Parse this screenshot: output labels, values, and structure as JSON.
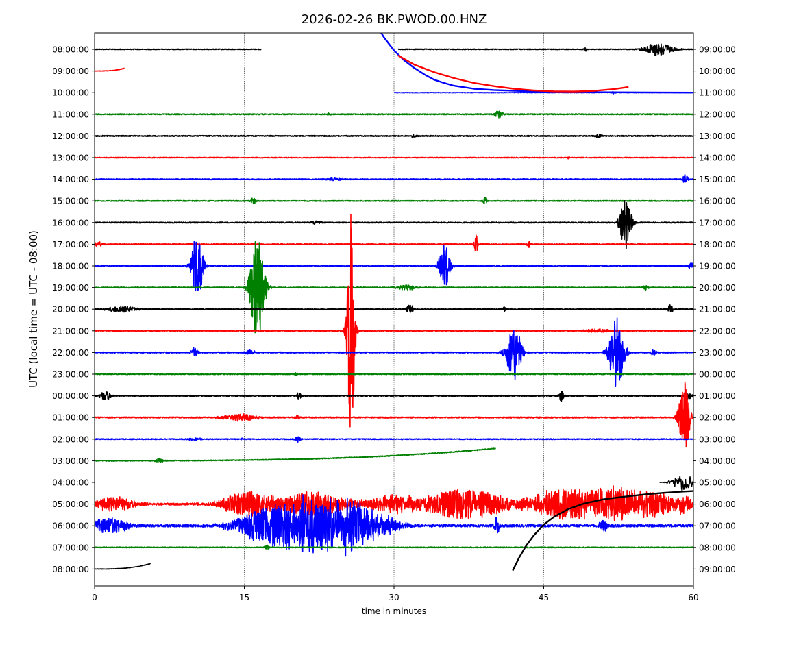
{
  "chart_data": {
    "type": "line",
    "title": "2026-02-26 BK.PWOD.00.HNZ",
    "xlabel": "time in minutes",
    "ylabel": "UTC (local time = UTC - 08:00)",
    "xlim": [
      0,
      60
    ],
    "xticks": [
      0,
      15,
      30,
      45,
      60
    ],
    "x_grid_lines": [
      15,
      30,
      45
    ],
    "trace_colors": [
      "#000000",
      "#ff0000",
      "#0000ff",
      "#008000"
    ],
    "left_labels": [
      "08:00:00",
      "09:00:00",
      "10:00:00",
      "11:00:00",
      "12:00:00",
      "13:00:00",
      "14:00:00",
      "15:00:00",
      "16:00:00",
      "17:00:00",
      "18:00:00",
      "19:00:00",
      "20:00:00",
      "21:00:00",
      "22:00:00",
      "23:00:00",
      "00:00:00",
      "01:00:00",
      "02:00:00",
      "03:00:00",
      "04:00:00",
      "05:00:00",
      "06:00:00",
      "07:00:00",
      "08:00:00"
    ],
    "right_labels": [
      "09:00:00",
      "10:00:00",
      "11:00:00",
      "12:00:00",
      "13:00:00",
      "14:00:00",
      "15:00:00",
      "16:00:00",
      "17:00:00",
      "18:00:00",
      "19:00:00",
      "20:00:00",
      "21:00:00",
      "22:00:00",
      "23:00:00",
      "00:00:00",
      "01:00:00",
      "02:00:00",
      "03:00:00",
      "04:00:00",
      "05:00:00",
      "06:00:00",
      "07:00:00",
      "08:00:00",
      "09:00:00"
    ],
    "rows": [
      {
        "label": "08:00:00",
        "color": "black",
        "segments": [
          [
            0,
            16.7
          ],
          [
            30.4,
            60
          ]
        ],
        "noise": 0.6,
        "events": [
          {
            "t": 56.5,
            "amp": 10,
            "dur": 1.5
          },
          {
            "t": 49.2,
            "amp": 3,
            "dur": 0.2
          }
        ]
      },
      {
        "label": "09:00:00",
        "color": "red",
        "segments": [
          [
            0,
            3
          ]
        ],
        "noise": 0.3,
        "drift": {
          "type": "rise",
          "amp": 4
        }
      },
      {
        "label": "10:00:00",
        "color": "blue",
        "segments": [
          [
            30,
            60
          ]
        ],
        "noise": 0.4,
        "events": [
          {
            "t": 52,
            "amp": 2,
            "dur": 0.2
          }
        ]
      },
      {
        "label": "11:00:00",
        "color": "green",
        "segments": [
          [
            0,
            60
          ]
        ],
        "noise": 0.8,
        "events": [
          {
            "t": 40.5,
            "amp": 6,
            "dur": 0.4
          },
          {
            "t": 23.5,
            "amp": 2,
            "dur": 0.2
          }
        ]
      },
      {
        "label": "12:00:00",
        "color": "black",
        "segments": [
          [
            0,
            60
          ]
        ],
        "noise": 0.8,
        "events": [
          {
            "t": 32,
            "amp": 3,
            "dur": 0.3
          },
          {
            "t": 50.5,
            "amp": 3,
            "dur": 0.3
          }
        ]
      },
      {
        "label": "13:00:00",
        "color": "red",
        "segments": [
          [
            0,
            60
          ]
        ],
        "noise": 0.6,
        "events": [
          {
            "t": 47.5,
            "amp": 2,
            "dur": 0.2
          }
        ]
      },
      {
        "label": "14:00:00",
        "color": "blue",
        "segments": [
          [
            0,
            60
          ]
        ],
        "noise": 0.8,
        "events": [
          {
            "t": 59.2,
            "amp": 8,
            "dur": 0.3
          },
          {
            "t": 24,
            "amp": 2,
            "dur": 0.8
          }
        ]
      },
      {
        "label": "15:00:00",
        "color": "green",
        "segments": [
          [
            0,
            60
          ]
        ],
        "noise": 0.7,
        "events": [
          {
            "t": 15.9,
            "amp": 5,
            "dur": 0.3
          },
          {
            "t": 39.1,
            "amp": 6,
            "dur": 0.2
          }
        ]
      },
      {
        "label": "16:00:00",
        "color": "black",
        "segments": [
          [
            0,
            60
          ]
        ],
        "noise": 0.8,
        "events": [
          {
            "t": 53.2,
            "amp": 40,
            "dur": 0.6
          },
          {
            "t": 22.2,
            "amp": 3,
            "dur": 0.5
          }
        ]
      },
      {
        "label": "17:00:00",
        "color": "red",
        "segments": [
          [
            0,
            60
          ]
        ],
        "noise": 0.8,
        "events": [
          {
            "t": 38.2,
            "amp": 16,
            "dur": 0.2
          },
          {
            "t": 43.5,
            "amp": 5,
            "dur": 0.2
          },
          {
            "t": 0.3,
            "amp": 4,
            "dur": 0.5
          }
        ]
      },
      {
        "label": "18:00:00",
        "color": "blue",
        "segments": [
          [
            0,
            60
          ]
        ],
        "noise": 0.8,
        "events": [
          {
            "t": 10.3,
            "amp": 50,
            "dur": 0.6
          },
          {
            "t": 35.1,
            "amp": 32,
            "dur": 0.6
          },
          {
            "t": 59.8,
            "amp": 5,
            "dur": 0.3
          }
        ]
      },
      {
        "label": "19:00:00",
        "color": "green",
        "segments": [
          [
            0,
            60
          ]
        ],
        "noise": 0.8,
        "events": [
          {
            "t": 16.3,
            "amp": 80,
            "dur": 0.8
          },
          {
            "t": 31.2,
            "amp": 4,
            "dur": 1.0
          },
          {
            "t": 55.2,
            "amp": 4,
            "dur": 0.3
          }
        ]
      },
      {
        "label": "20:00:00",
        "color": "black",
        "segments": [
          [
            0,
            60
          ]
        ],
        "noise": 0.9,
        "events": [
          {
            "t": 2.7,
            "amp": 5,
            "dur": 1.5
          },
          {
            "t": 31.6,
            "amp": 7,
            "dur": 0.4
          },
          {
            "t": 57.7,
            "amp": 7,
            "dur": 0.3
          },
          {
            "t": 41.1,
            "amp": 3,
            "dur": 0.2
          }
        ]
      },
      {
        "label": "21:00:00",
        "color": "red",
        "segments": [
          [
            0,
            60
          ]
        ],
        "noise": 0.7,
        "events": [
          {
            "t": 25.7,
            "amp": 180,
            "dur": 0.4
          },
          {
            "t": 50.5,
            "amp": 3,
            "dur": 1.5
          }
        ]
      },
      {
        "label": "22:00:00",
        "color": "blue",
        "segments": [
          [
            0,
            60
          ]
        ],
        "noise": 0.8,
        "events": [
          {
            "t": 42,
            "amp": 42,
            "dur": 0.8
          },
          {
            "t": 52.3,
            "amp": 55,
            "dur": 0.8
          },
          {
            "t": 10,
            "amp": 9,
            "dur": 0.4
          },
          {
            "t": 56,
            "amp": 6,
            "dur": 0.3
          },
          {
            "t": 15.5,
            "amp": 3,
            "dur": 0.8
          }
        ]
      },
      {
        "label": "23:00:00",
        "color": "green",
        "segments": [
          [
            0,
            60
          ]
        ],
        "noise": 0.7,
        "events": [
          {
            "t": 20.2,
            "amp": 2,
            "dur": 0.2
          }
        ]
      },
      {
        "label": "00:00:00",
        "color": "black",
        "segments": [
          [
            0,
            60
          ]
        ],
        "noise": 0.9,
        "events": [
          {
            "t": 1.1,
            "amp": 7,
            "dur": 0.6
          },
          {
            "t": 46.8,
            "amp": 8,
            "dur": 0.3
          },
          {
            "t": 20.5,
            "amp": 5,
            "dur": 0.3
          },
          {
            "t": 59.5,
            "amp": 6,
            "dur": 0.4
          }
        ]
      },
      {
        "label": "01:00:00",
        "color": "red",
        "segments": [
          [
            0,
            60
          ]
        ],
        "noise": 0.9,
        "events": [
          {
            "t": 59.1,
            "amp": 55,
            "dur": 0.6
          },
          {
            "t": 14.5,
            "amp": 5,
            "dur": 2
          },
          {
            "t": 20.3,
            "amp": 3,
            "dur": 0.3
          }
        ]
      },
      {
        "label": "02:00:00",
        "color": "blue",
        "segments": [
          [
            0,
            60
          ]
        ],
        "noise": 0.7,
        "events": [
          {
            "t": 20.4,
            "amp": 5,
            "dur": 0.3
          },
          {
            "t": 10,
            "amp": 2,
            "dur": 0.8
          },
          {
            "t": 14.7,
            "amp": 2,
            "dur": 0.2
          }
        ]
      },
      {
        "label": "03:00:00",
        "color": "green",
        "segments": [
          [
            0,
            40.2
          ]
        ],
        "noise": 0.7,
        "drift": {
          "type": "rise",
          "amp": 18
        },
        "events": [
          {
            "t": 6.5,
            "amp": 4,
            "dur": 0.4
          }
        ]
      },
      {
        "label": "04:00:00",
        "color": "black",
        "segments": [],
        "noise": 0.8,
        "events": [
          {
            "t": 59,
            "amp": 14,
            "dur": 1.2
          }
        ]
      },
      {
        "label": "05:00:00",
        "color": "red",
        "segments": [
          [
            0,
            60
          ]
        ],
        "noise": 1.6,
        "events": [
          {
            "t": 2,
            "amp": 10,
            "dur": 2.5
          },
          {
            "t": 15.5,
            "amp": 18,
            "dur": 3
          },
          {
            "t": 22,
            "amp": 18,
            "dur": 4
          },
          {
            "t": 30,
            "amp": 12,
            "dur": 3
          },
          {
            "t": 37,
            "amp": 22,
            "dur": 5
          },
          {
            "t": 47,
            "amp": 22,
            "dur": 4
          },
          {
            "t": 52,
            "amp": 24,
            "dur": 3
          },
          {
            "t": 56,
            "amp": 18,
            "dur": 3
          },
          {
            "t": 59,
            "amp": 10,
            "dur": 1
          }
        ]
      },
      {
        "label": "06:00:00",
        "color": "blue",
        "segments": [
          [
            0,
            60
          ]
        ],
        "noise": 1.8,
        "events": [
          {
            "t": 1.5,
            "amp": 12,
            "dur": 2
          },
          {
            "t": 18,
            "amp": 28,
            "dur": 4
          },
          {
            "t": 22,
            "amp": 35,
            "dur": 4
          },
          {
            "t": 26,
            "amp": 30,
            "dur": 3
          },
          {
            "t": 29,
            "amp": 12,
            "dur": 2
          },
          {
            "t": 40.3,
            "amp": 14,
            "dur": 0.3
          },
          {
            "t": 51,
            "amp": 8,
            "dur": 0.5
          }
        ]
      },
      {
        "label": "07:00:00",
        "color": "green",
        "segments": [
          [
            0,
            60
          ]
        ],
        "noise": 0.7,
        "events": [
          {
            "t": 17.3,
            "amp": 3,
            "dur": 0.3
          }
        ]
      },
      {
        "label": "08:00:00",
        "color": "black",
        "segments": [
          [
            0,
            5.6
          ]
        ],
        "noise": 0.3,
        "drift": {
          "type": "rise",
          "amp": 8
        }
      }
    ],
    "curves": [
      {
        "color": "blue",
        "x": [
          26,
          27,
          28,
          29,
          30,
          31,
          32,
          33,
          34,
          35,
          36,
          38,
          40,
          43,
          46,
          50,
          55,
          60
        ],
        "row_offset": [
          -5.45,
          -4.3,
          -3.3,
          -2.55,
          -1.95,
          -1.5,
          -1.15,
          -0.85,
          -0.6,
          -0.45,
          -0.32,
          -0.18,
          -0.12,
          -0.07,
          -0.04,
          -0.02,
          -0.01,
          0
        ]
      },
      {
        "color": "red",
        "x": [
          30.4,
          32,
          34,
          36,
          38,
          40,
          42,
          44,
          46,
          48,
          50,
          52,
          53.5
        ],
        "row_offset": [
          -1.72,
          -1.3,
          -0.95,
          -0.67,
          -0.45,
          -0.3,
          -0.18,
          -0.1,
          -0.06,
          -0.05,
          -0.08,
          -0.16,
          -0.26
        ]
      },
      {
        "color": "black",
        "x": [
          41.9,
          42.5,
          43.2,
          44,
          45,
          46,
          47.5,
          49,
          51,
          53,
          55,
          57,
          59,
          60
        ],
        "row_offset": [
          4.07,
          3.5,
          2.95,
          2.45,
          1.95,
          1.6,
          1.22,
          0.98,
          0.78,
          0.66,
          0.56,
          0.48,
          0.42,
          0.4
        ],
        "row_base_index": 20
      }
    ]
  }
}
